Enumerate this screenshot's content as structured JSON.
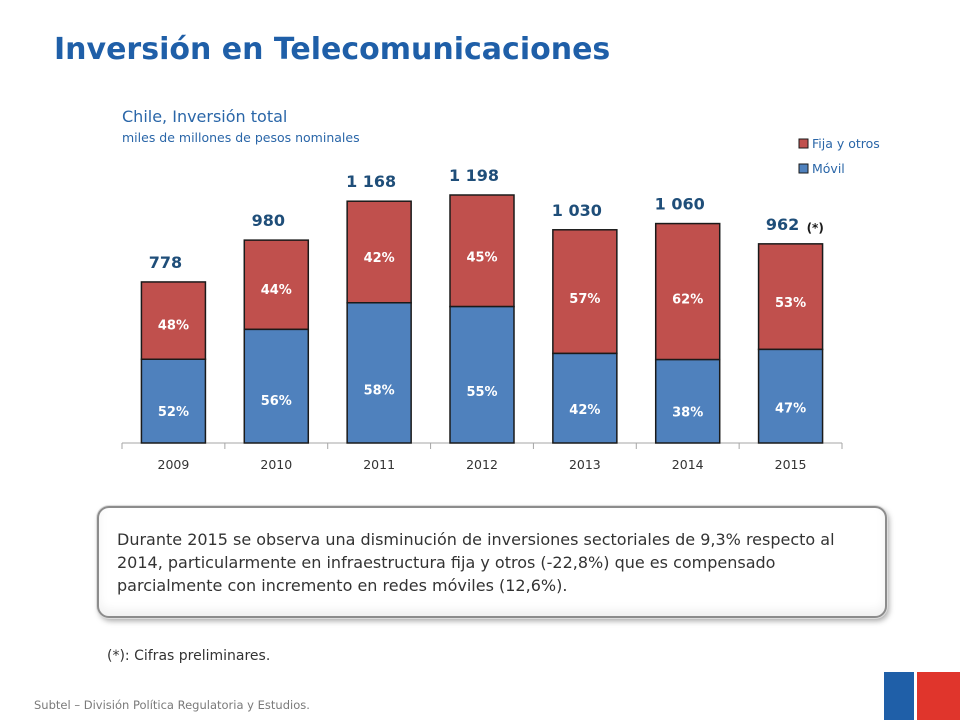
{
  "slide": {
    "title": "Inversión en Telecomunicaciones",
    "note": "Durante 2015 se observa una disminución de inversiones sectoriales de 9,3% respecto al 2014, particularmente en infraestructura fija y otros (-22,8%) que es compensado parcialmente con incremento en redes móviles (12,6%).",
    "footnote": "(*): Cifras preliminares.",
    "source": "Subtel – División Política Regulatoria y Estudios."
  },
  "chart_data": {
    "type": "bar",
    "stacked": true,
    "title": "Chile,  Inversión total",
    "subtitle": "miles de millones de pesos nominales",
    "categories": [
      "2009",
      "2010",
      "2011",
      "2012",
      "2013",
      "2014",
      "2015"
    ],
    "totals": [
      778,
      980,
      1168,
      1198,
      1030,
      1060,
      962
    ],
    "total_labels": [
      "778",
      "980",
      "1 168",
      "1 198",
      "1 030",
      "1 060",
      "962"
    ],
    "total_annotation": {
      "category_index": 6,
      "text": "(*)"
    },
    "series": [
      {
        "name": "Móvil",
        "color": "#4f81bd",
        "percent": [
          52,
          56,
          58,
          55,
          42,
          38,
          47
        ],
        "labels": [
          "52%",
          "56%",
          "58%",
          "55%",
          "42%",
          "38%",
          "47%"
        ]
      },
      {
        "name": "Fija y otros",
        "color": "#c0504d",
        "percent": [
          48,
          44,
          42,
          45,
          57,
          62,
          53
        ],
        "labels": [
          "48%",
          "44%",
          "42%",
          "45%",
          "57%",
          "62%",
          "53%"
        ]
      }
    ],
    "legend": {
      "position": "top-right",
      "order": [
        "Fija y otros",
        "Móvil"
      ]
    },
    "ylim": [
      0,
      1400
    ],
    "grid": false
  }
}
